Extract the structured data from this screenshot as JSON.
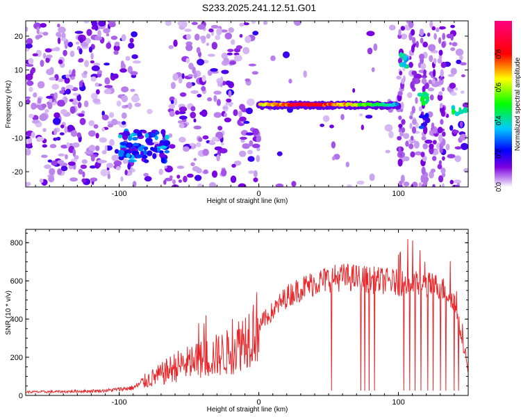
{
  "title": "S233.2025.241.12.51.G01",
  "chart_data": [
    {
      "type": "heatmap",
      "xlabel": "Height of straight line (km)",
      "ylabel": "Frequency (Hz)",
      "xlim": [
        -167,
        150
      ],
      "ylim": [
        -24.5,
        24.5
      ],
      "xticks": [
        -100,
        0,
        100
      ],
      "yticks": [
        -20,
        -10,
        0,
        10,
        20
      ],
      "colorbar": {
        "label": "Normalized spectral amplitude",
        "range": [
          0,
          1
        ],
        "ticks": [
          0.0,
          0.2,
          0.4,
          0.6,
          0.8
        ],
        "colors": [
          "#ffffff",
          "#7b00e0",
          "#0000ff",
          "#00c8ff",
          "#00ff00",
          "#ffff00",
          "#ff0000",
          "#ff0080"
        ]
      },
      "features": [
        {
          "name": "bright ridge",
          "x": [
            0,
            100
          ],
          "freq": -0.3,
          "amplitude": 0.85
        },
        {
          "name": "cluster",
          "x": [
            -100,
            -65
          ],
          "freq": -12,
          "amplitude": 0.45
        },
        {
          "name": "blob",
          "x": [
            100,
            107
          ],
          "freq": 13,
          "amplitude": 0.4
        },
        {
          "name": "blob",
          "x": [
            114,
            122
          ],
          "freq": 1.5,
          "amplitude": 0.5
        },
        {
          "name": "blob",
          "x": [
            139,
            150
          ],
          "freq": -2,
          "amplitude": 0.5
        }
      ]
    },
    {
      "type": "line",
      "xlabel": "Height of straight line (km)",
      "ylabel": "SNR (10 * v/v)",
      "xlim": [
        -167,
        150
      ],
      "ylim": [
        0,
        870
      ],
      "xticks": [
        -100,
        0,
        100
      ],
      "yticks": [
        0,
        200,
        400,
        600,
        800
      ],
      "color": "#e8262a",
      "x": [
        -167,
        -140,
        -110,
        -90,
        -80,
        -70,
        -60,
        -50,
        -40,
        -30,
        -20,
        -10,
        0,
        10,
        20,
        30,
        40,
        50,
        60,
        70,
        80,
        90,
        100,
        110,
        120,
        130,
        140,
        150
      ],
      "values": [
        18,
        20,
        25,
        40,
        80,
        110,
        150,
        170,
        190,
        210,
        230,
        300,
        370,
        440,
        520,
        560,
        590,
        610,
        620,
        615,
        605,
        600,
        590,
        585,
        580,
        570,
        500,
        130
      ],
      "dropouts": [
        52,
        73,
        76,
        79,
        83,
        104,
        108,
        112,
        116,
        121,
        125,
        130,
        134,
        140,
        143
      ]
    }
  ]
}
